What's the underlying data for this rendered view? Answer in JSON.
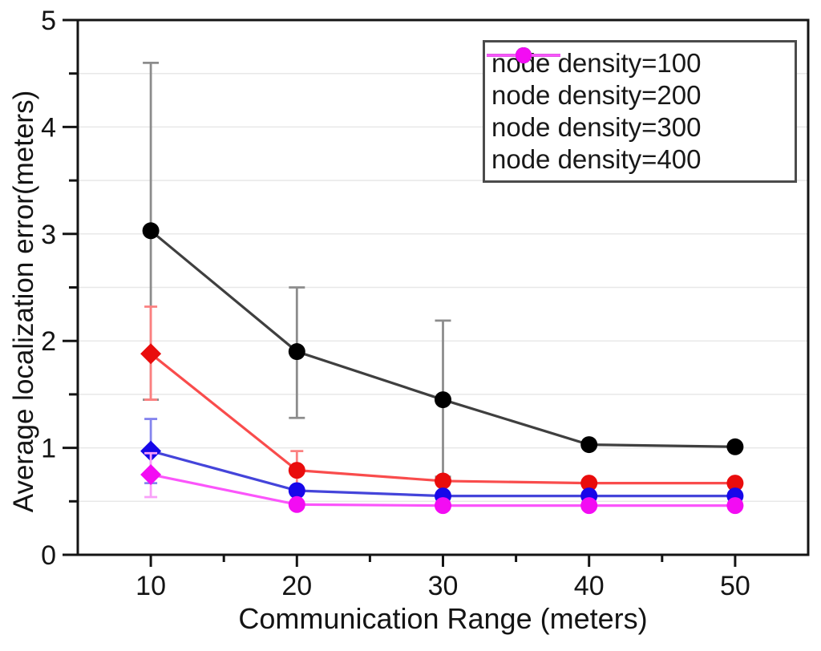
{
  "chart_data": {
    "type": "line",
    "title": "",
    "xlabel": "Communication Range (meters)",
    "ylabel": "Average localization error(meters)",
    "x": [
      10,
      20,
      30,
      40,
      50
    ],
    "xlim": [
      5,
      55
    ],
    "ylim": [
      0,
      5
    ],
    "x_major_ticks": [
      10,
      20,
      30,
      40,
      50
    ],
    "x_minor_ticks": [
      15,
      25,
      35,
      45
    ],
    "y_major_ticks": [
      0,
      1,
      2,
      3,
      4,
      5
    ],
    "y_minor_ticks": [
      0.5,
      1.5,
      2.5,
      3.5,
      4.5
    ],
    "grid": {
      "orientation": "horizontal",
      "step": 0.5,
      "color": "#e8e8e8"
    },
    "axis_color": "#141414",
    "legend_position": "top-right",
    "series": [
      {
        "name": "node density=100",
        "line_color": "#3f3f3f",
        "marker_color": "#000000",
        "error_color": "#8c8c8c",
        "markers": [
          "circle",
          "circle",
          "circle",
          "circle",
          "circle"
        ],
        "values": [
          3.03,
          1.9,
          1.45,
          1.03,
          1.01
        ],
        "err_high": [
          1.57,
          0.6,
          0.74,
          0,
          0
        ],
        "err_low": [
          1.58,
          0.62,
          0.72,
          0,
          0
        ]
      },
      {
        "name": "node density=200",
        "line_color": "#f94c4c",
        "marker_color": "#e90c0c",
        "error_color": "#fb8080",
        "markers": [
          "diamond",
          "circle",
          "circle",
          "circle",
          "circle"
        ],
        "values": [
          1.88,
          0.79,
          0.69,
          0.67,
          0.67
        ],
        "err_high": [
          0.44,
          0.18,
          0,
          0,
          0
        ],
        "err_low": [
          0.43,
          0.17,
          0,
          0,
          0
        ]
      },
      {
        "name": "node density=300",
        "line_color": "#4444da",
        "marker_color": "#1707e9",
        "error_color": "#8585ee",
        "markers": [
          "diamond",
          "circle",
          "circle",
          "circle",
          "circle"
        ],
        "values": [
          0.97,
          0.6,
          0.55,
          0.55,
          0.55
        ],
        "err_high": [
          0.3,
          0,
          0,
          0,
          0
        ],
        "err_low": [
          0.3,
          0,
          0,
          0,
          0
        ]
      },
      {
        "name": "node density=400",
        "line_color": "#fb55fb",
        "marker_color": "#f30cf3",
        "error_color": "#f9a0f9",
        "markers": [
          "diamond",
          "circle",
          "circle",
          "circle",
          "circle"
        ],
        "values": [
          0.75,
          0.47,
          0.46,
          0.46,
          0.46
        ],
        "err_high": [
          0.2,
          0,
          0,
          0,
          0
        ],
        "err_low": [
          0.21,
          0,
          0,
          0,
          0
        ]
      }
    ]
  }
}
